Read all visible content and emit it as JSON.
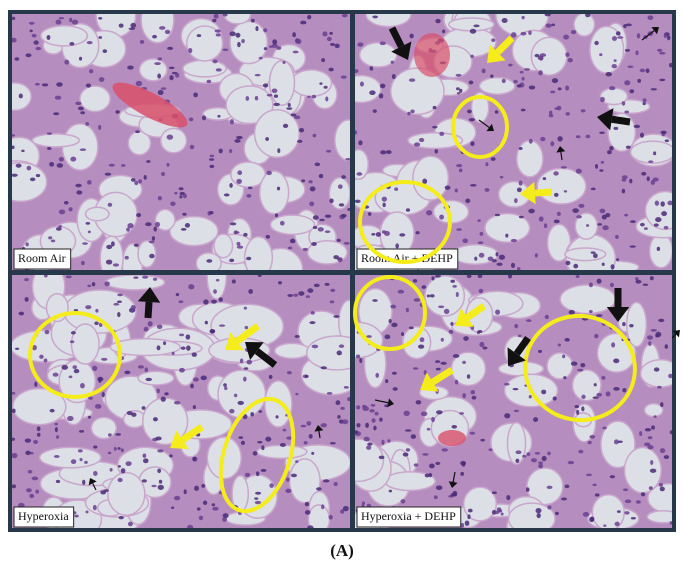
{
  "panels": [
    {
      "label": "Room Air"
    },
    {
      "label": "Room Air + DEHP"
    },
    {
      "label": "Hyperoxia"
    },
    {
      "label": "Hyperoxia + DEHP"
    }
  ],
  "caption": "(A)"
}
